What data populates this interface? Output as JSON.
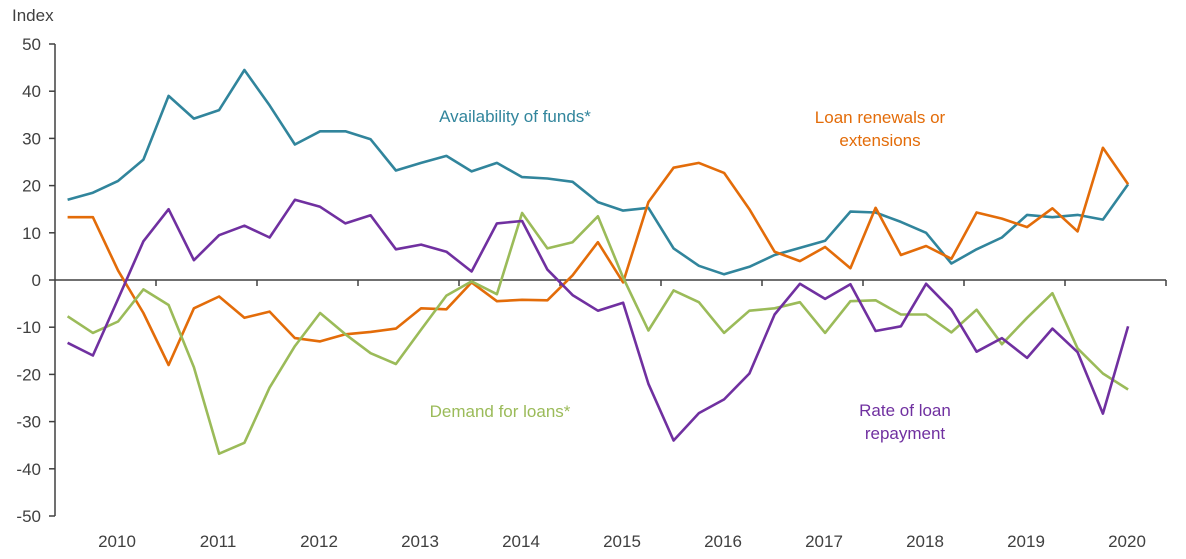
{
  "chart_data": {
    "type": "line",
    "ylabel": "Index",
    "ylim": [
      -50,
      50
    ],
    "yticks": [
      50,
      40,
      30,
      20,
      10,
      0,
      -10,
      -20,
      -30,
      -40,
      -50
    ],
    "x_start": "2010Q1",
    "x_end": "2020Q3",
    "frequency": "quarterly",
    "xtick_labels": [
      "2010",
      "2011",
      "2012",
      "2013",
      "2014",
      "2015",
      "2016",
      "2017",
      "2018",
      "2019",
      "2020"
    ],
    "grid": false,
    "series": [
      {
        "name": "Availability of funds*",
        "label_lines": [
          "Availability  of funds*"
        ],
        "color": "#31859C",
        "values": [
          17,
          18.5,
          21,
          25.5,
          39,
          34.2,
          36,
          44.5,
          37,
          28.7,
          31.5,
          31.5,
          29.8,
          23.2,
          24.8,
          26.3,
          23,
          24.8,
          21.8,
          21.5,
          20.8,
          16.5,
          14.7,
          15.3,
          6.7,
          3,
          1.2,
          2.8,
          5.3,
          6.8,
          8.3,
          14.5,
          14.3,
          12.3,
          10,
          3.5,
          6.5,
          9,
          13.8,
          13.3,
          13.8,
          12.8,
          20.3
        ]
      },
      {
        "name": "Loan renewals or extensions",
        "label_lines": [
          "Loan renewals or",
          "extensions"
        ],
        "color": "#E36C09",
        "values": [
          13.3,
          13.3,
          2,
          -7,
          -18,
          -6,
          -3.5,
          -8,
          -6.7,
          -12.3,
          -13,
          -11.5,
          -11,
          -10.3,
          -6,
          -6.2,
          -0.5,
          -4.5,
          -4.2,
          -4.3,
          1,
          8,
          -0.5,
          16.5,
          23.8,
          24.8,
          22.7,
          15,
          6,
          4,
          7,
          2.5,
          15.3,
          5.3,
          7.2,
          4.5,
          14.3,
          13,
          11.2,
          15.2,
          10.3,
          28,
          20.3
        ]
      },
      {
        "name": "Demand for loans*",
        "label_lines": [
          "Demand  for loans*"
        ],
        "color": "#9BBB59",
        "values": [
          -7.7,
          -11.2,
          -8.8,
          -2,
          -5.3,
          -18.5,
          -36.8,
          -34.5,
          -22.8,
          -14,
          -7,
          -11.5,
          -15.5,
          -17.8,
          -10.5,
          -3.3,
          -0.3,
          -3,
          14.2,
          6.7,
          8,
          13.5,
          0.5,
          -10.7,
          -2.2,
          -4.7,
          -11.2,
          -6.5,
          -6,
          -4.7,
          -11.2,
          -4.5,
          -4.3,
          -7.3,
          -7.3,
          -11.1,
          -6.3,
          -13.6,
          -8,
          -2.8,
          -14.5,
          -19.8,
          -23.2
        ]
      },
      {
        "name": "Rate of loan repayment",
        "label_lines": [
          "Rate of loan",
          "repayment"
        ],
        "color": "#7030A0",
        "values": [
          -13.3,
          -16,
          -4,
          8.2,
          15,
          4.2,
          9.5,
          11.5,
          9,
          17,
          15.5,
          12,
          13.7,
          6.5,
          7.5,
          6,
          1.8,
          12,
          12.5,
          2.2,
          -3.2,
          -6.5,
          -4.8,
          -22,
          -34,
          -28.2,
          -25.3,
          -19.8,
          -7.3,
          -0.8,
          -4,
          -0.9,
          -10.8,
          -9.8,
          -0.8,
          -6.3,
          -15.2,
          -12.3,
          -16.5,
          -10.3,
          -15.3,
          -28.3,
          -9.8
        ]
      }
    ]
  }
}
